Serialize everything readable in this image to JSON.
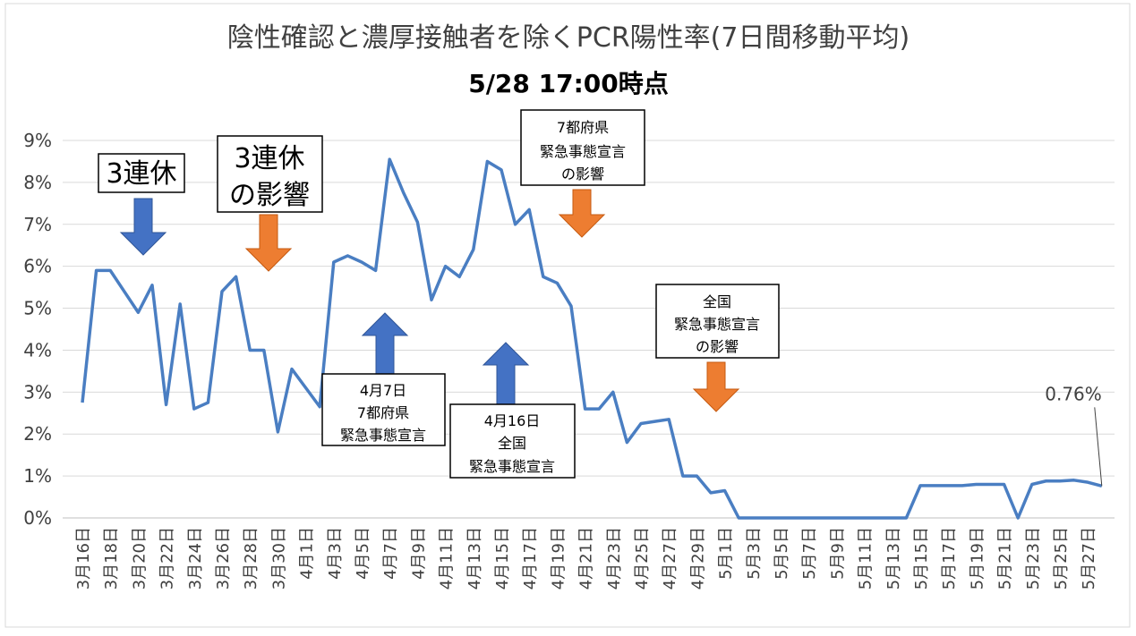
{
  "chart_data": {
    "type": "line",
    "title": "陰性確認と濃厚接触者を除くPCR陽性率(7日間移動平均)",
    "subtitle": "5/28 17:00時点",
    "categories": [
      "3月16日",
      null,
      "3月18日",
      null,
      "3月20日",
      null,
      "3月22日",
      null,
      "3月24日",
      null,
      "3月26日",
      null,
      "3月28日",
      null,
      "3月30日",
      null,
      "4月1日",
      null,
      "4月3日",
      null,
      "4月5日",
      null,
      "4月7日",
      null,
      "4月9日",
      null,
      "4月11日",
      null,
      "4月13日",
      null,
      "4月15日",
      null,
      "4月17日",
      null,
      "4月19日",
      null,
      "4月21日",
      null,
      "4月23日",
      null,
      "4月25日",
      null,
      "4月27日",
      null,
      "4月29日",
      null,
      "5月1日",
      null,
      "5月3日",
      null,
      "5月5日",
      null,
      "5月7日",
      null,
      "5月9日",
      null,
      "5月11日",
      null,
      "5月13日",
      null,
      "5月15日",
      null,
      "5月17日",
      null,
      "5月19日",
      null,
      "5月21日",
      null,
      "5月23日",
      null,
      "5月25日",
      null,
      "5月27日",
      null
    ],
    "series": [
      {
        "name": "PCR陽性率",
        "color": "#4a7ec2",
        "values": [
          2.75,
          5.9,
          5.9,
          5.4,
          4.9,
          5.55,
          2.7,
          5.1,
          2.6,
          2.75,
          5.4,
          5.75,
          4.0,
          4.0,
          2.05,
          3.55,
          3.1,
          2.65,
          6.1,
          6.25,
          6.1,
          5.9,
          8.55,
          7.75,
          7.05,
          5.2,
          6.0,
          5.75,
          6.4,
          8.5,
          8.3,
          7.0,
          7.35,
          5.75,
          5.6,
          5.05,
          2.6,
          2.6,
          3.0,
          1.8,
          2.25,
          2.3,
          2.35,
          1.0,
          1.0,
          0.6,
          0.65,
          0,
          0,
          0,
          0,
          0,
          0,
          0,
          0,
          0,
          0,
          0,
          0,
          0,
          0.77,
          0.77,
          0.77,
          0.77,
          0.8,
          0.8,
          0.8,
          0.0,
          0.8,
          0.88,
          0.88,
          0.9,
          0.85,
          0.76
        ],
        "value_labels": [
          null,
          null,
          null,
          null,
          null,
          null,
          null,
          null,
          null,
          null,
          null,
          null,
          null,
          null,
          null,
          null,
          null,
          null,
          null,
          null,
          null,
          null,
          null,
          null,
          null,
          null,
          null,
          null,
          null,
          null,
          null,
          null,
          null,
          null,
          null,
          null,
          null,
          null,
          null,
          null,
          null,
          null,
          null,
          null,
          null,
          null,
          null,
          null,
          null,
          null,
          null,
          null,
          null,
          null,
          null,
          null,
          null,
          null,
          null,
          null,
          null,
          null,
          null,
          null,
          null,
          null,
          null,
          null,
          null,
          null,
          null,
          null,
          null,
          "0.76%"
        ]
      }
    ],
    "ylim": [
      0,
      9
    ],
    "yticks": [
      {
        "value": 0,
        "label": "0%"
      },
      {
        "value": 1,
        "label": "1%"
      },
      {
        "value": 2,
        "label": "2%"
      },
      {
        "value": 3,
        "label": "3%"
      },
      {
        "value": 4,
        "label": "4%"
      },
      {
        "value": 5,
        "label": "5%"
      },
      {
        "value": 6,
        "label": "6%"
      },
      {
        "value": 7,
        "label": "7%"
      },
      {
        "value": 8,
        "label": "8%"
      },
      {
        "value": 9,
        "label": "9%"
      }
    ],
    "grid": true,
    "annotations": [
      {
        "lines": [
          "3連休"
        ]
      },
      {
        "lines": [
          "3連休",
          "の影響"
        ]
      },
      {
        "lines": [
          "7都府県",
          "緊急事態宣言",
          "の影響"
        ]
      },
      {
        "lines": [
          "4月7日",
          "7都府県",
          "緊急事態宣言"
        ]
      },
      {
        "lines": [
          "4月16日",
          "全国",
          "緊急事態宣言"
        ]
      },
      {
        "lines": [
          "全国",
          "緊急事態宣言",
          "の影響"
        ]
      }
    ]
  }
}
